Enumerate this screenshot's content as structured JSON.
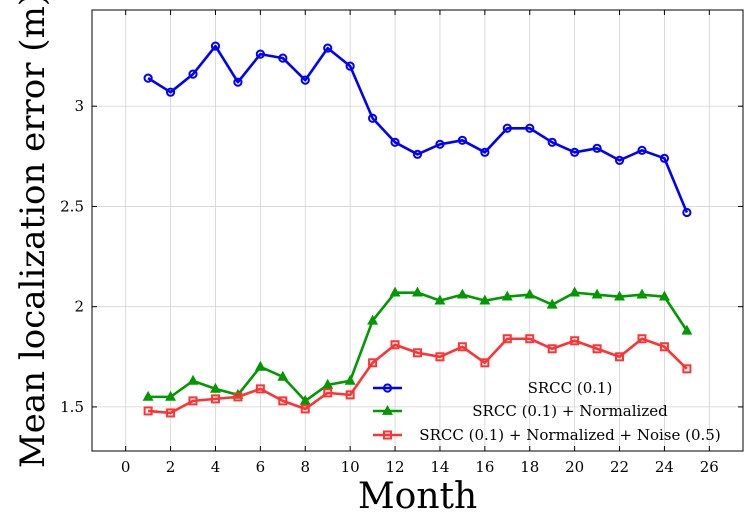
{
  "chart_data": {
    "type": "line",
    "title": "",
    "xlabel": "Month",
    "ylabel": "Mean localization error (m)",
    "xlim": [
      -1.5,
      27.5
    ],
    "ylim": [
      1.28,
      3.48
    ],
    "xticks": [
      0,
      2,
      4,
      6,
      8,
      10,
      12,
      14,
      16,
      18,
      20,
      22,
      24,
      26
    ],
    "yticks": [
      1.5,
      2,
      2.5,
      3
    ],
    "ytick_labels": [
      "1.5",
      "2",
      "2.5",
      "3"
    ],
    "grid": true,
    "legend_position": "bottom-right",
    "x": [
      1,
      2,
      3,
      4,
      5,
      6,
      7,
      8,
      9,
      10,
      11,
      12,
      13,
      14,
      15,
      16,
      17,
      18,
      19,
      20,
      21,
      22,
      23,
      24,
      25
    ],
    "series": [
      {
        "name": "SRCC (0.1)",
        "color": "#0000ff",
        "marker": "circle",
        "values": [
          3.14,
          3.07,
          3.16,
          3.3,
          3.12,
          3.26,
          3.24,
          3.13,
          3.29,
          3.2,
          2.94,
          2.82,
          2.76,
          2.81,
          2.83,
          2.77,
          2.89,
          2.89,
          2.82,
          2.77,
          2.79,
          2.73,
          2.78,
          2.74,
          2.47
        ]
      },
      {
        "name": "SRCC (0.1) + Normalized",
        "color": "#009900",
        "marker": "triangle",
        "values": [
          1.55,
          1.55,
          1.63,
          1.59,
          1.56,
          1.7,
          1.65,
          1.53,
          1.61,
          1.63,
          1.93,
          2.07,
          2.07,
          2.03,
          2.06,
          2.03,
          2.05,
          2.06,
          2.01,
          2.07,
          2.06,
          2.05,
          2.06,
          2.05,
          1.88
        ]
      },
      {
        "name": "SRCC (0.1) + Normalized + Noise (0.5)",
        "color": "#ff3333",
        "marker": "square",
        "values": [
          1.48,
          1.47,
          1.53,
          1.54,
          1.55,
          1.59,
          1.53,
          1.49,
          1.57,
          1.56,
          1.72,
          1.81,
          1.77,
          1.75,
          1.8,
          1.72,
          1.84,
          1.84,
          1.79,
          1.83,
          1.79,
          1.75,
          1.84,
          1.8,
          1.69
        ]
      }
    ]
  }
}
